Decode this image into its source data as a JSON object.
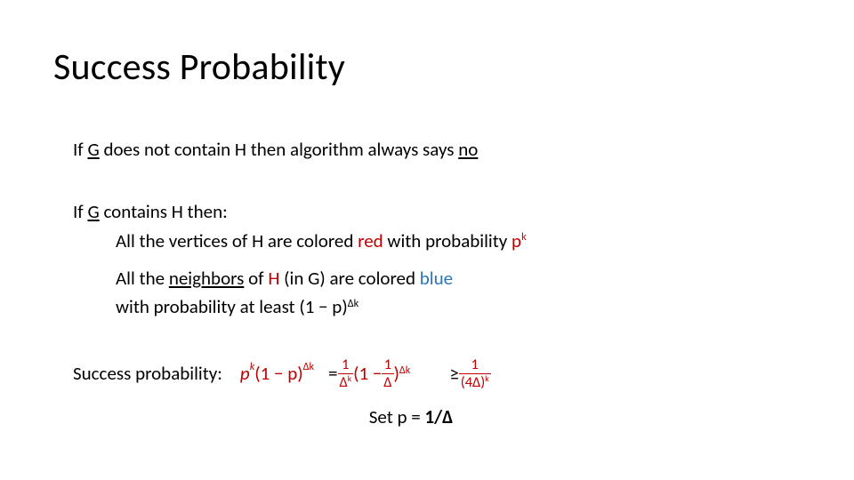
{
  "colors": {
    "text": "#000000",
    "red": "#c00000",
    "blue": "#2e75b6",
    "background": "#ffffff"
  },
  "typography": {
    "title_fontsize": 42,
    "body_fontsize": 21,
    "font_family": "Calibri"
  },
  "title": "Success Probability",
  "line1": {
    "p1": "If ",
    "g": "G",
    "p2": " does not contain H then algorithm always says ",
    "no": "no"
  },
  "line2": {
    "p1": "If ",
    "g": "G",
    "p2": " contains H then:"
  },
  "line3": {
    "p1": "All the vertices of H are colored ",
    "red_word": "red",
    "p2": " with probability ",
    "pk_p": "p",
    "pk_k": "k"
  },
  "line4": {
    "p1": "All the ",
    "neighbors": "neighbors",
    "p2": " of ",
    "H": "H",
    "p3": " (in G) are colored ",
    "blue_word": "blue"
  },
  "line5": {
    "p1": "with probability at least ",
    "base": "(1 − p)",
    "exp": "Δk"
  },
  "success": {
    "label": "Success probability:",
    "t1_base": "p",
    "t1_exp": "k",
    "t2_base": "(1 − p)",
    "t2_exp": "Δk",
    "eq": " = ",
    "f1_num": "1",
    "f1_den_base": "Δ",
    "f1_den_exp": "k",
    "mid_open": " (1 − ",
    "f2_num": "1",
    "f2_den": "Δ",
    "mid_close": ")",
    "mid_exp": "Δk",
    "geq": " ≥ ",
    "f3_num": "1",
    "f3_den_open": "(4Δ)",
    "f3_den_exp": "k"
  },
  "set": {
    "p1": "Set p = ",
    "val": "1/Δ"
  }
}
